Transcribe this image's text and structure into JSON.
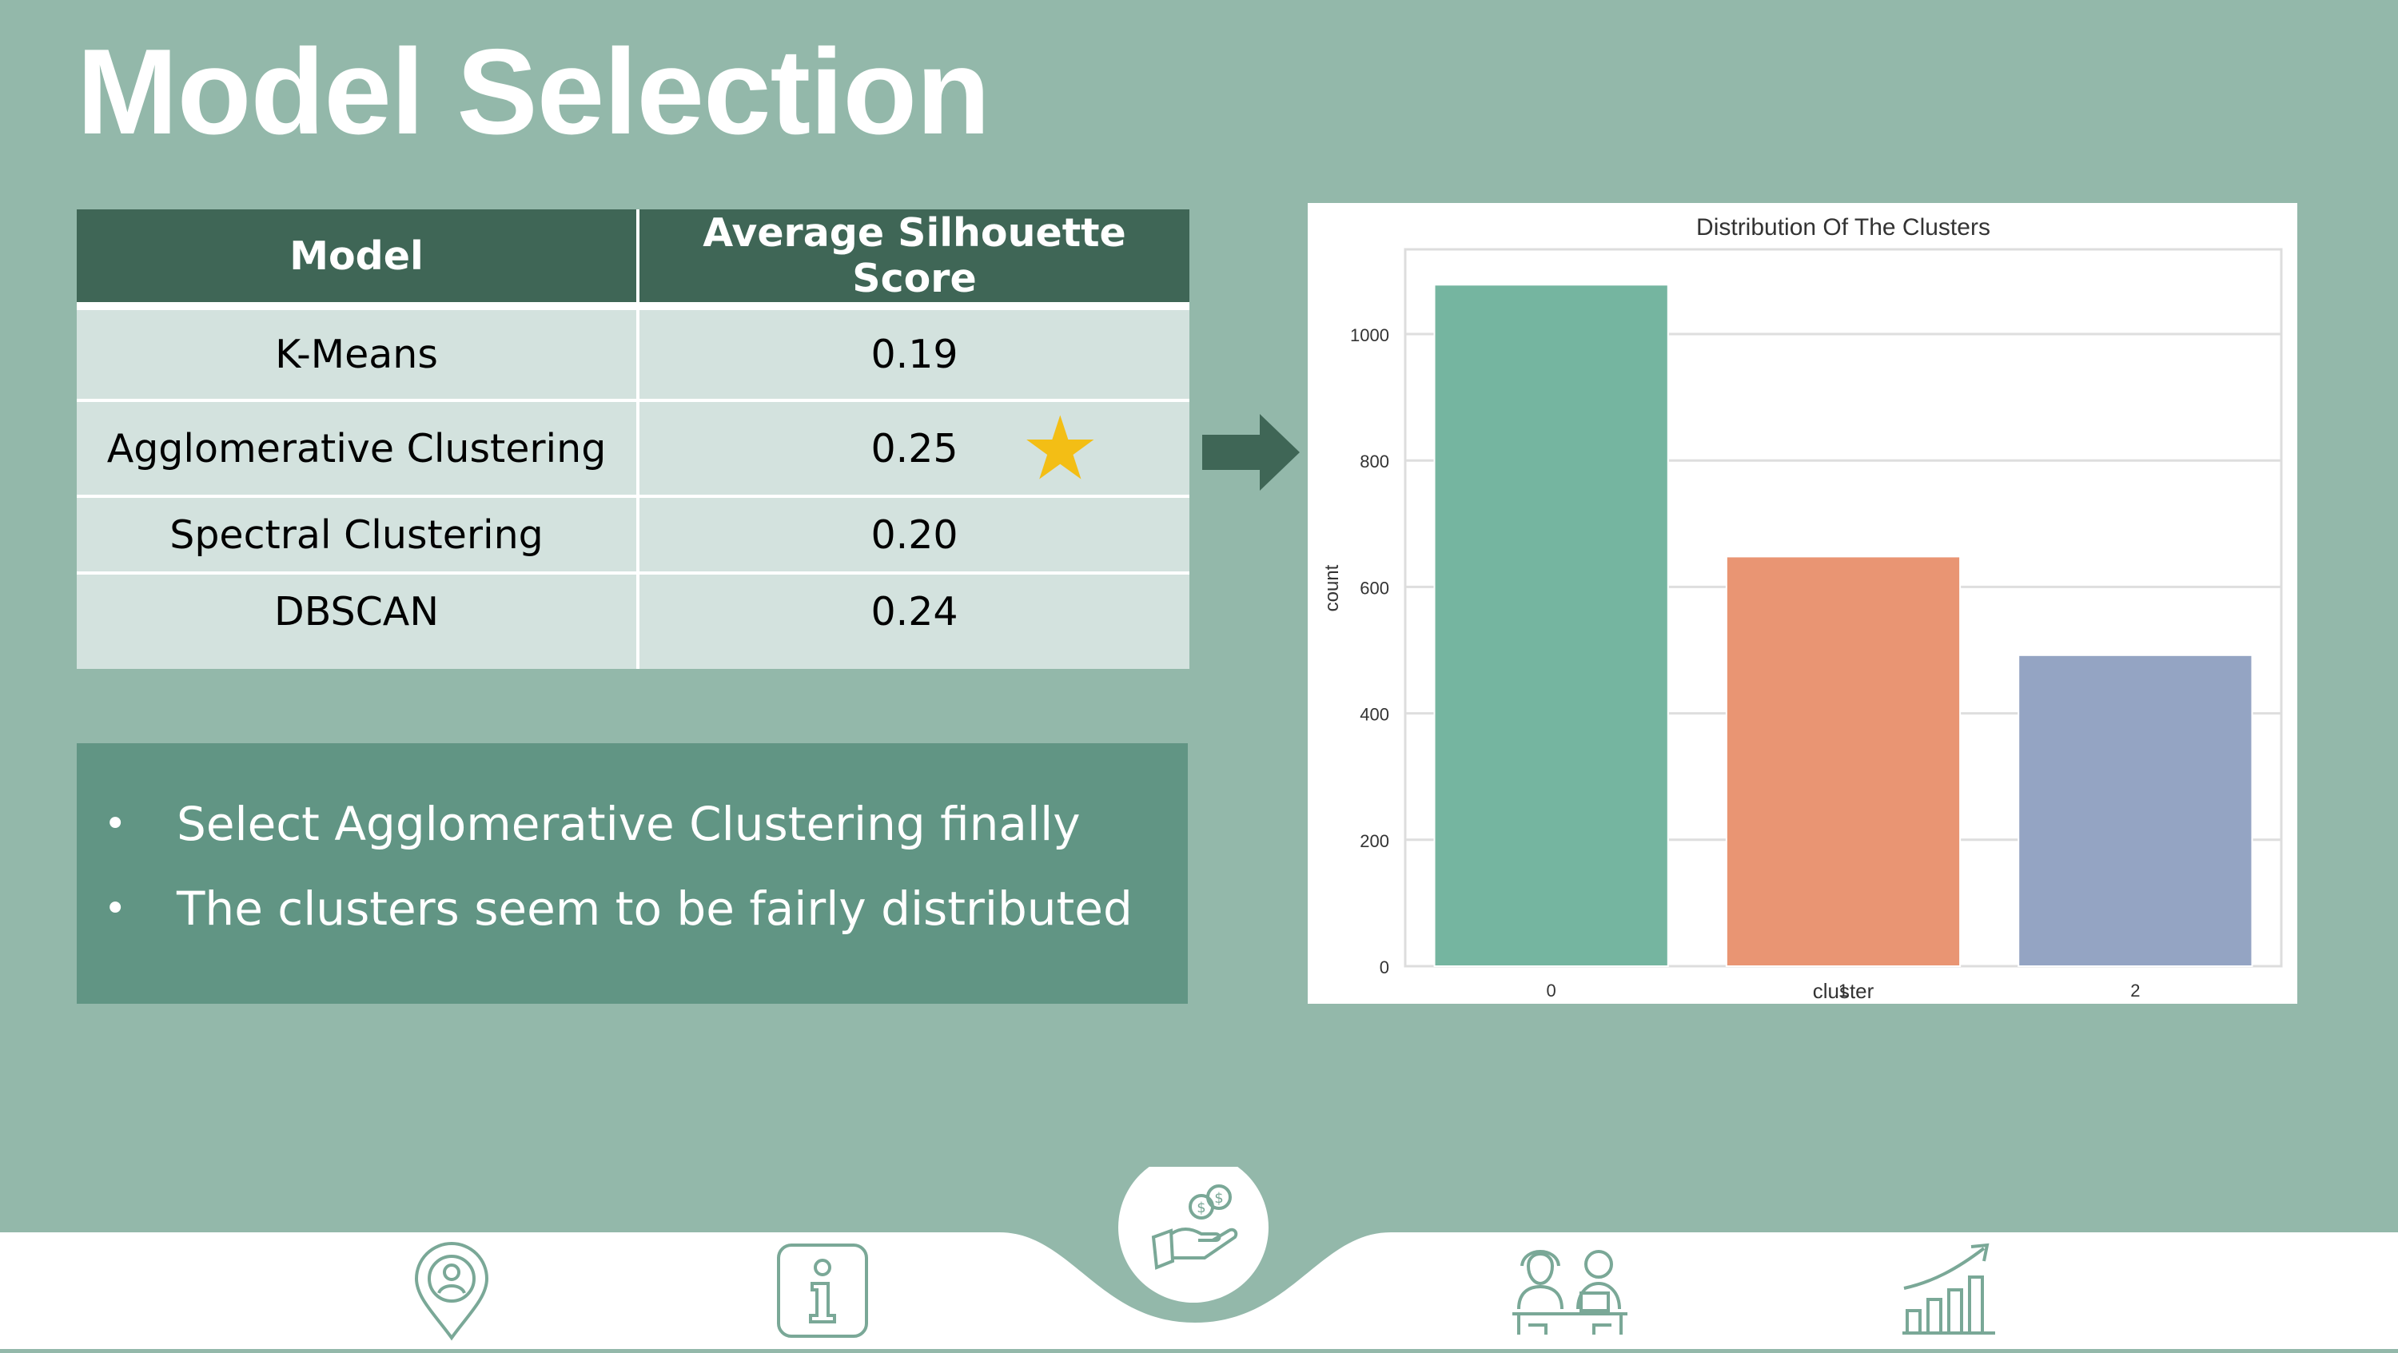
{
  "title": "Model Selection",
  "table": {
    "headers": [
      "Model",
      "Average Silhouette Score"
    ],
    "rows": [
      {
        "model": "K-Means",
        "score": "0.19"
      },
      {
        "model": "Agglomerative Clustering",
        "score": "0.25"
      },
      {
        "model": "Spectral Clustering",
        "score": "0.20"
      },
      {
        "model": "DBSCAN",
        "score": "0.24"
      }
    ],
    "highlight_icon": "star-icon",
    "highlight_color": "#f3be15"
  },
  "notes": [
    "Select Agglomerative Clustering finally",
    "The clusters seem to be fairly distributed"
  ],
  "chart_data": {
    "type": "bar",
    "title": "Distribution Of The Clusters",
    "xlabel": "cluster",
    "ylabel": "count",
    "categories": [
      "0",
      "1",
      "2"
    ],
    "values": [
      1078,
      648,
      492
    ],
    "colors": [
      "#75b5a0",
      "#e99573",
      "#94a4c3"
    ],
    "yticks": [
      "0",
      "200",
      "400",
      "600",
      "800",
      "1000"
    ],
    "ylim": [
      0,
      1134
    ],
    "grid": true,
    "legend": "none"
  },
  "footer": {
    "icons": [
      "location-person-icon",
      "info-icon",
      "money-hand-icon",
      "meeting-people-icon",
      "growth-chart-icon"
    ],
    "active_index": 2,
    "icon_color": "#7aa897"
  },
  "colors": {
    "background": "#93b8aa",
    "header": "#3f6656",
    "cell": "#d3e2de",
    "notes": "#619584",
    "accent": "#f3be15"
  }
}
